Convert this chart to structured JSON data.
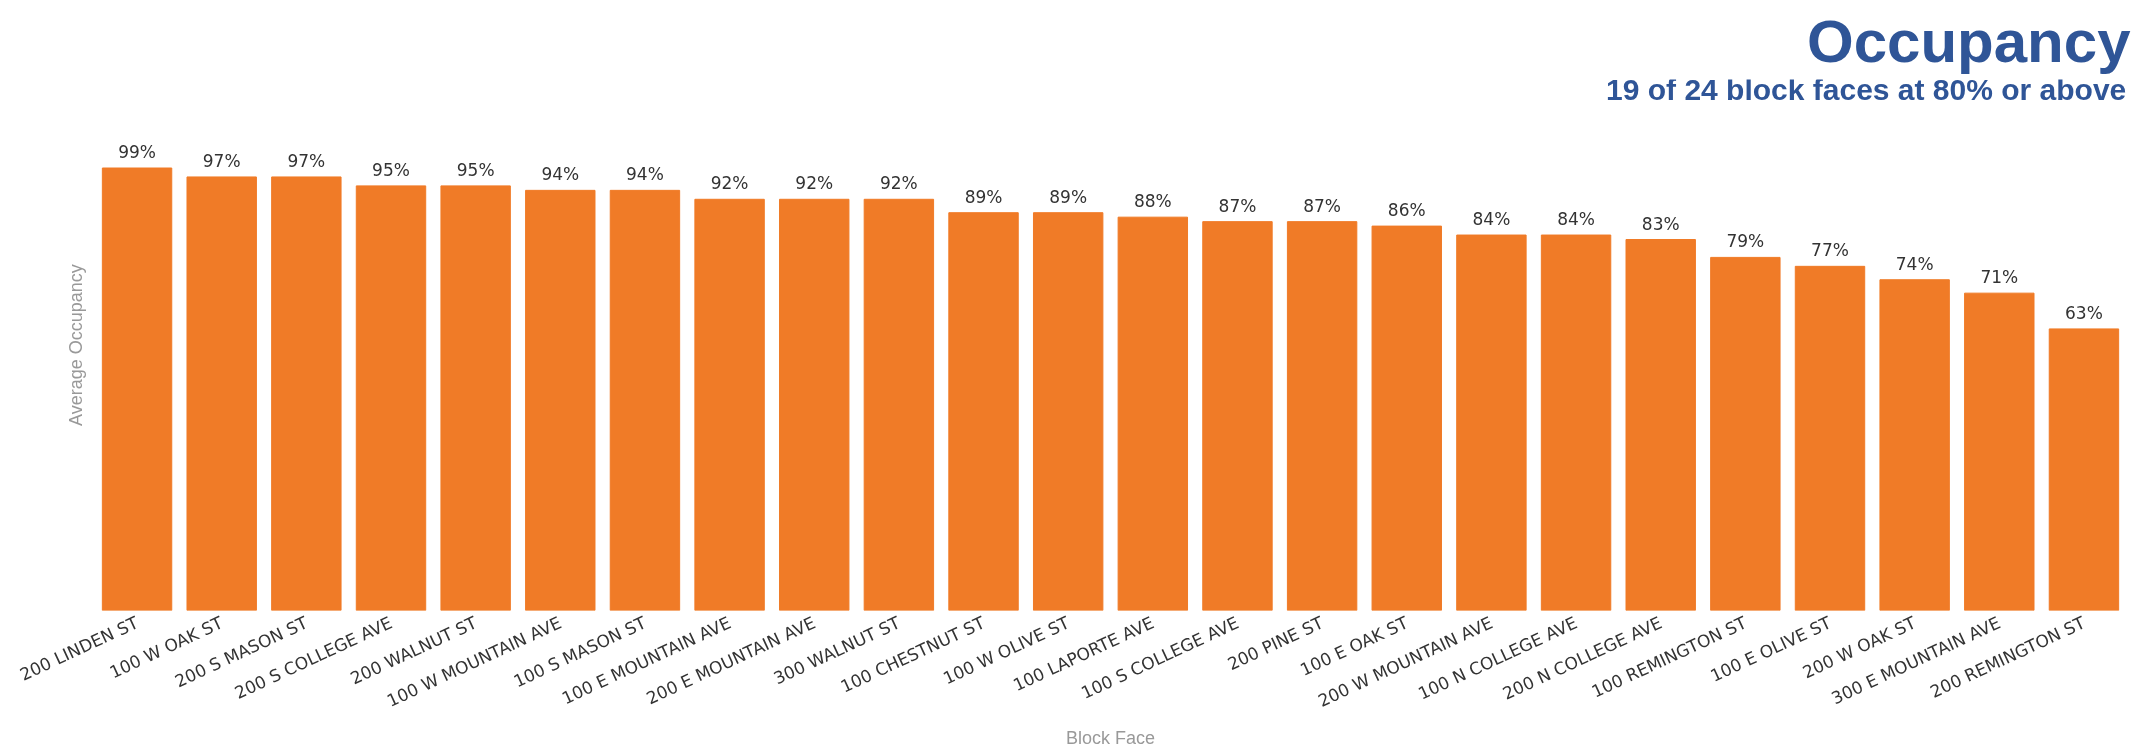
{
  "chart_data": {
    "type": "bar",
    "title": "Occupancy",
    "xlabel": "Block Face",
    "ylabel": "Average Occupancy",
    "annotations": [
      "19 of 24 block faces at 80% or above"
    ],
    "categories": [
      "200 LINDEN ST",
      "100 W OAK ST",
      "200 S MASON ST",
      "200 S COLLEGE AVE",
      "200 WALNUT ST",
      "100 W MOUNTAIN AVE",
      "100 S MASON ST",
      "100 E MOUNTAIN AVE",
      "200 E MOUNTAIN AVE",
      "300 WALNUT ST",
      "100 CHESTNUT ST",
      "100 W OLIVE ST",
      "100 LAPORTE AVE",
      "100 S COLLEGE AVE",
      "200 PINE ST",
      "100 E OAK ST",
      "200 W MOUNTAIN AVE",
      "100 N COLLEGE AVE",
      "200 N COLLEGE AVE",
      "100 REMINGTON ST",
      "100 E OLIVE ST",
      "200 W OAK ST",
      "300 E MOUNTAIN AVE",
      "200 REMINGTON ST"
    ],
    "values": [
      99,
      97,
      97,
      95,
      95,
      94,
      94,
      92,
      92,
      92,
      89,
      89,
      88,
      87,
      87,
      86,
      84,
      84,
      83,
      79,
      77,
      74,
      71,
      63
    ],
    "value_labels": [
      "99%",
      "97%",
      "97%",
      "95%",
      "95%",
      "94%",
      "94%",
      "92%",
      "92%",
      "92%",
      "89%",
      "89%",
      "88%",
      "87%",
      "87%",
      "86%",
      "84%",
      "84%",
      "83%",
      "79%",
      "77%",
      "74%",
      "71%",
      "63%"
    ],
    "color": "#f07b27",
    "grid": false
  }
}
